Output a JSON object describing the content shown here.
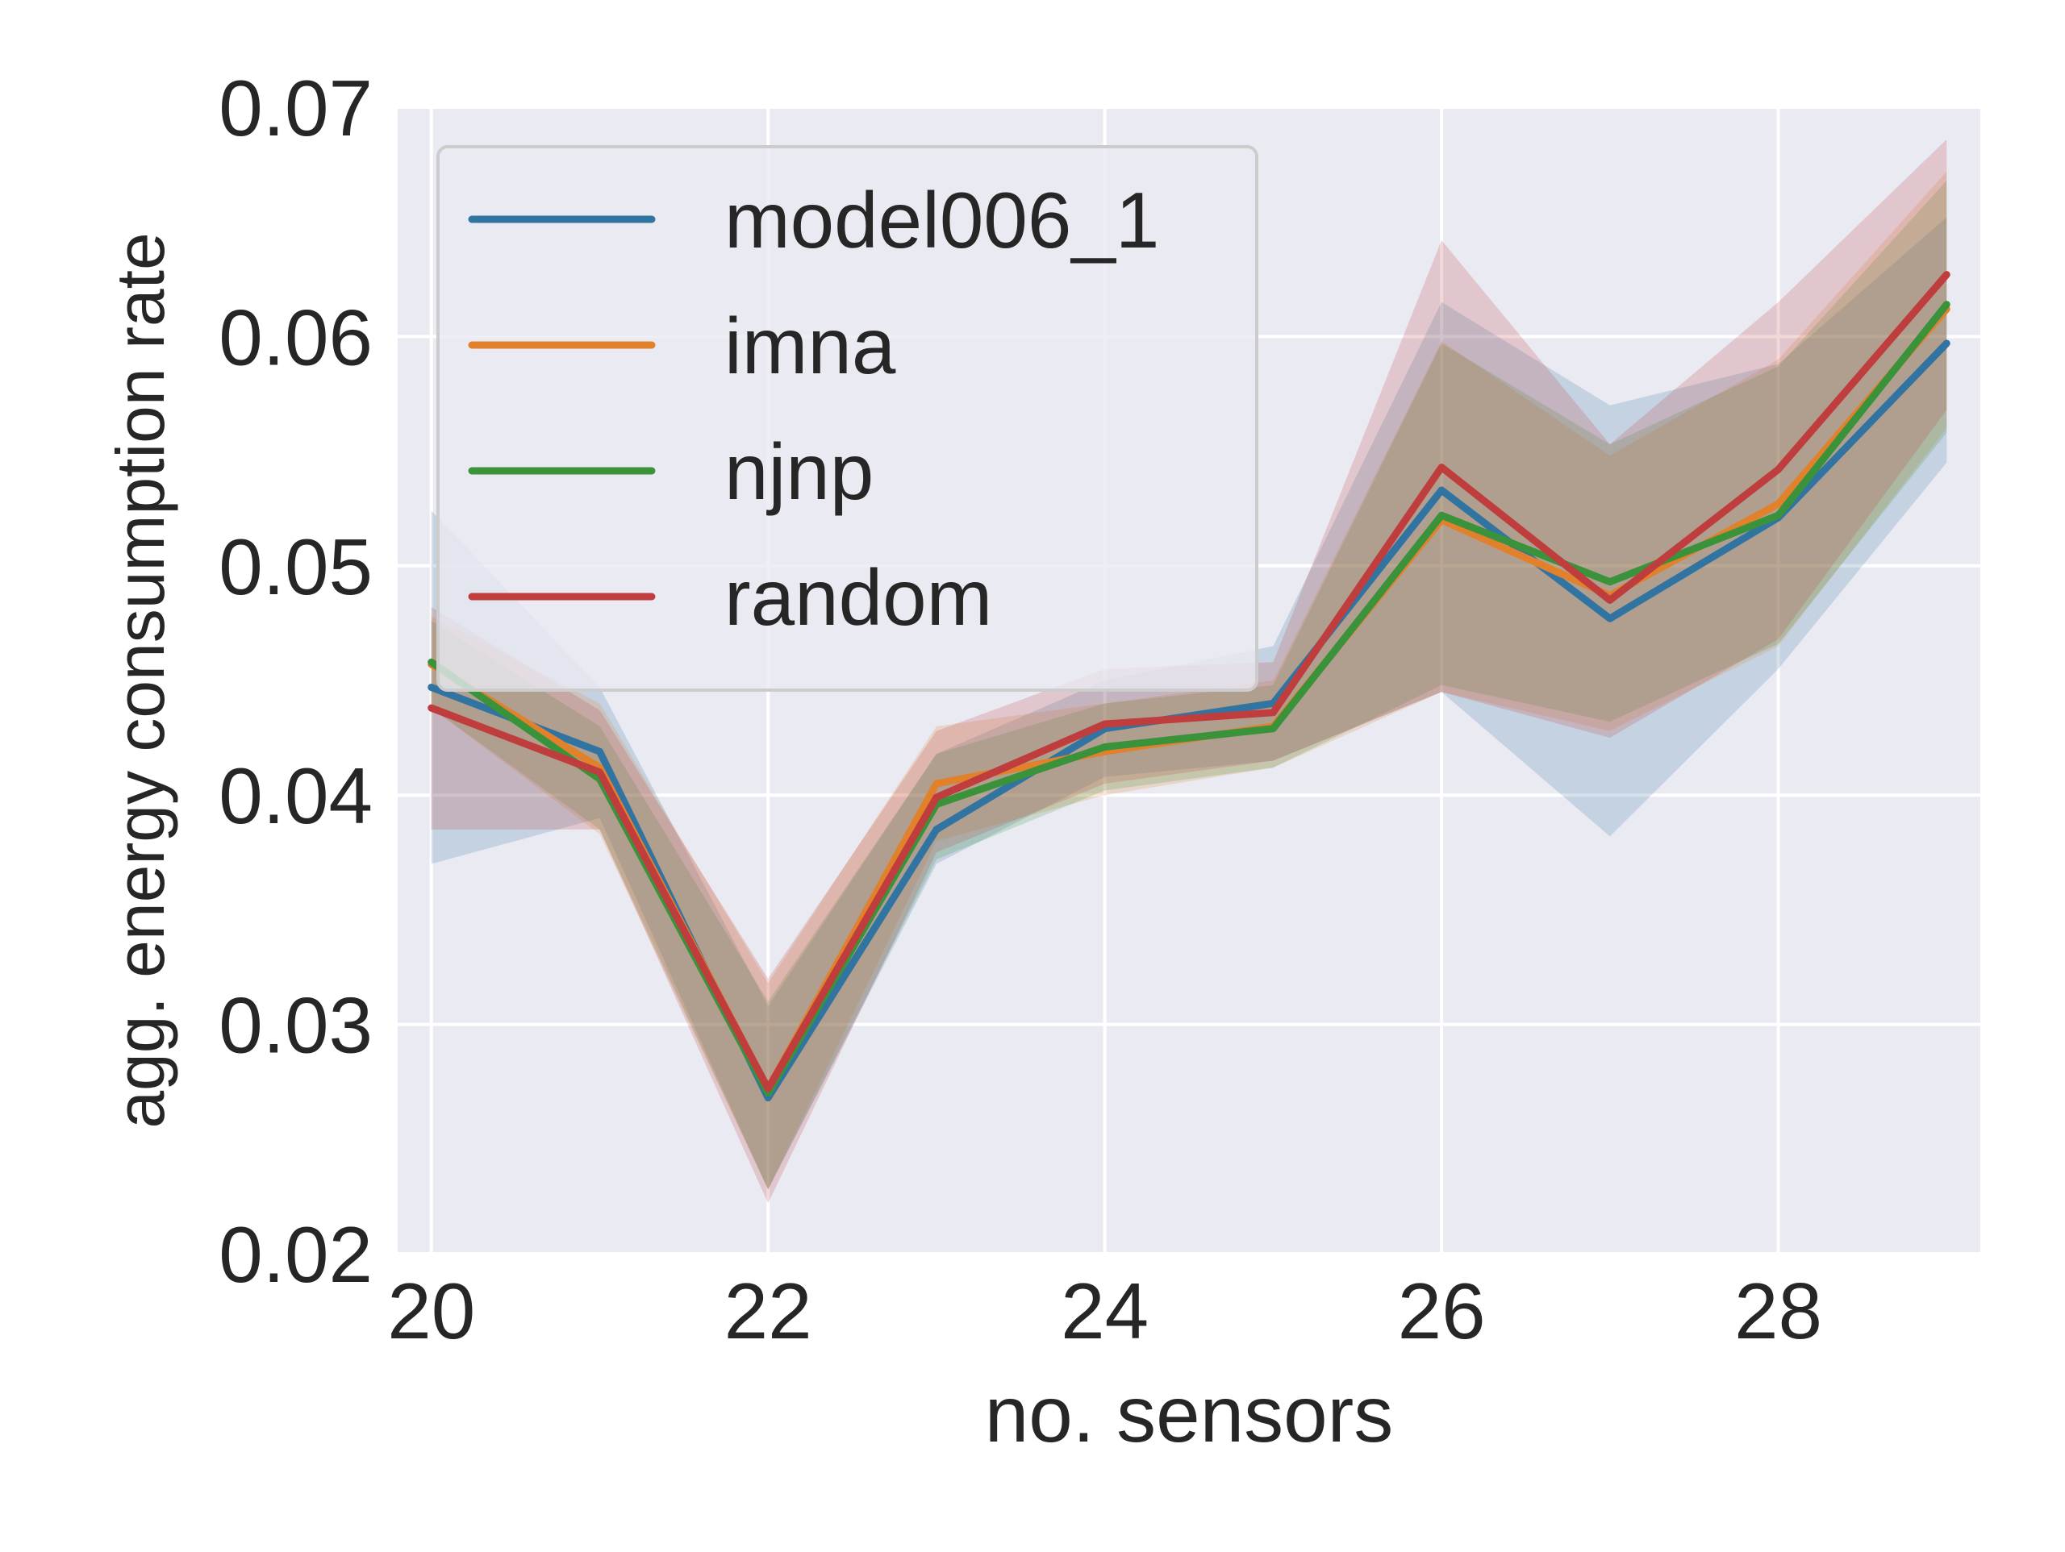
{
  "chart_data": {
    "type": "line",
    "title": "",
    "xlabel": "no. sensors",
    "ylabel": "agg. energy consumption rate",
    "xlim": [
      19.8,
      29.2
    ],
    "ylim": [
      0.02,
      0.07
    ],
    "xticks": [
      20,
      22,
      24,
      26,
      28
    ],
    "xtick_labels": [
      "20",
      "22",
      "24",
      "26",
      "28"
    ],
    "yticks": [
      0.02,
      0.03,
      0.04,
      0.05,
      0.06,
      0.07
    ],
    "ytick_labels": [
      "0.02",
      "0.03",
      "0.04",
      "0.05",
      "0.06",
      "0.07"
    ],
    "grid": true,
    "legend_position": "top-left",
    "x": [
      20,
      21,
      22,
      23,
      24,
      25,
      26,
      27,
      28,
      29
    ],
    "series": [
      {
        "name": "model006_1",
        "color": "#3274a1",
        "values": [
          0.0447,
          0.0419,
          0.0268,
          0.0385,
          0.0429,
          0.044,
          0.0533,
          0.0477,
          0.0521,
          0.0597
        ],
        "lower": [
          0.037,
          0.039,
          0.0228,
          0.037,
          0.0408,
          0.0415,
          0.0445,
          0.0382,
          0.0455,
          0.0545
        ],
        "upper": [
          0.0524,
          0.0447,
          0.0308,
          0.0418,
          0.045,
          0.0465,
          0.0615,
          0.057,
          0.0588,
          0.0652
        ]
      },
      {
        "name": "imna",
        "color": "#e1812c",
        "values": [
          0.0457,
          0.0412,
          0.0272,
          0.0405,
          0.0419,
          0.043,
          0.052,
          0.0487,
          0.0527,
          0.0612
        ],
        "lower": [
          0.0438,
          0.0383,
          0.0228,
          0.038,
          0.04,
          0.0412,
          0.0445,
          0.0428,
          0.0465,
          0.056
        ],
        "upper": [
          0.0478,
          0.044,
          0.0318,
          0.043,
          0.044,
          0.045,
          0.0598,
          0.0548,
          0.059,
          0.0672
        ]
      },
      {
        "name": "njnp",
        "color": "#3a923a",
        "values": [
          0.0458,
          0.0407,
          0.027,
          0.0396,
          0.0421,
          0.0429,
          0.0522,
          0.0493,
          0.0522,
          0.0614
        ],
        "lower": [
          0.0438,
          0.0385,
          0.0228,
          0.0372,
          0.0402,
          0.0412,
          0.0448,
          0.0432,
          0.0466,
          0.0558
        ],
        "upper": [
          0.0476,
          0.043,
          0.031,
          0.0418,
          0.044,
          0.0448,
          0.0597,
          0.0553,
          0.0587,
          0.0668
        ]
      },
      {
        "name": "random",
        "color": "#c03d3e",
        "values": [
          0.0438,
          0.041,
          0.0272,
          0.0399,
          0.0431,
          0.0436,
          0.0543,
          0.0485,
          0.0542,
          0.0627
        ],
        "lower": [
          0.0385,
          0.0385,
          0.0222,
          0.0375,
          0.0405,
          0.0415,
          0.0445,
          0.0425,
          0.0468,
          0.0568
        ],
        "upper": [
          0.0482,
          0.0437,
          0.032,
          0.0428,
          0.0455,
          0.0458,
          0.0642,
          0.0553,
          0.0615,
          0.0686
        ]
      }
    ]
  }
}
